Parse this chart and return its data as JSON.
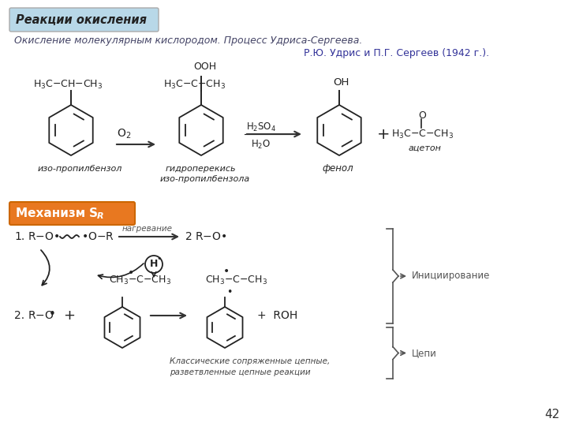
{
  "bg_color": "#ffffff",
  "title_box_text": "Реакции окисления",
  "title_box_bg": "#b8d8e8",
  "title_box_border": "#aaaaaa",
  "subtitle_text": "Окисление молекулярным кислородом. Процесс Удриса-Сергеева.",
  "subtitle_color": "#444466",
  "author_text": "Р.Ю. Удрис и П.Г. Сергеев (1942 г.).",
  "author_color": "#333399",
  "mechanism_box_bg": "#e87820",
  "page_number": "42",
  "page_color": "#333333",
  "text_color": "#222222",
  "arrow_color": "#333333",
  "garbled_top": "нагревание",
  "garbled_initiation": "Инициирование",
  "garbled_line1": "Классические сопряженные цепные,",
  "garbled_line2": "разветвленные цепные реакции"
}
